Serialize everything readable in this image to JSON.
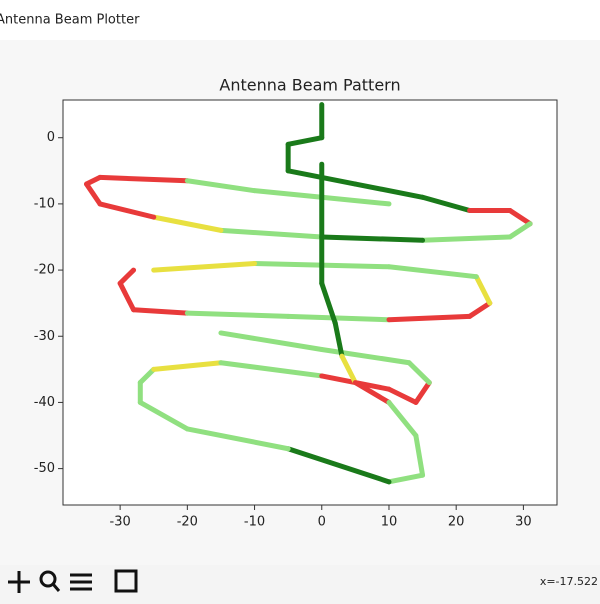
{
  "window_title": "Antenna Beam Plotter",
  "status": "x=-17.522",
  "chart_data": {
    "type": "line",
    "title": "Antenna Beam Pattern",
    "x": [
      0,
      0,
      -5,
      -5,
      5,
      15,
      22,
      28,
      31,
      28,
      15,
      0,
      -15,
      -25,
      -33,
      -35,
      -33,
      -20,
      -10,
      0,
      10,
      null,
      -28,
      -30,
      -28,
      -20,
      -5,
      10,
      22,
      25,
      23,
      10,
      -10,
      -25,
      null,
      -27,
      -25,
      -15,
      0,
      10,
      14,
      16,
      13,
      0,
      -15,
      null,
      0,
      0,
      0,
      2,
      3,
      5,
      10,
      14,
      15,
      10,
      -5,
      -20,
      -27,
      -27
    ],
    "series": [
      {
        "values": [
          5,
          0,
          -1,
          -5,
          -7,
          -9,
          -11,
          -11,
          -13,
          -15,
          -15.5,
          -15,
          -14,
          -12,
          -10,
          -7,
          -6,
          -6.5,
          -8,
          -9,
          -10,
          null,
          -20,
          -22,
          -26,
          -26.5,
          -27,
          -27.5,
          -27,
          -25,
          -21,
          -19.5,
          -19,
          -20,
          null,
          -37,
          -35,
          -34,
          -36,
          -38,
          -40,
          -37,
          -34,
          -32,
          -29.5,
          null,
          -4,
          -15,
          -22,
          -28,
          -33,
          -37,
          -40,
          -45,
          -51,
          -52,
          -47,
          -44,
          -40,
          -37
        ],
        "colors": [
          "#1a7a1a",
          "#1a7a1a",
          "#1a7a1a",
          "#1a7a1a",
          "#1a7a1a",
          "#1a7a1a",
          "#1a7a1a",
          "#e83a3a",
          "#e83a3a",
          "#90e080",
          "#90e080",
          "#1a7a1a",
          "#90e080",
          "#e8e040",
          "#e83a3a",
          "#e83a3a",
          "#e83a3a",
          "#e83a3a",
          "#90e080",
          "#90e080",
          "#90e080",
          null,
          "#e83a3a",
          "#e83a3a",
          "#e83a3a",
          "#e83a3a",
          "#90e080",
          "#90e080",
          "#e83a3a",
          "#e83a3a",
          "#e8e040",
          "#90e080",
          "#90e080",
          "#e8e040",
          null,
          "#e83a3a",
          "#90e080",
          "#e8e040",
          "#90e080",
          "#e83a3a",
          "#e83a3a",
          "#e83a3a",
          "#90e080",
          "#90e080",
          "#90e080",
          null,
          "#1a7a1a",
          "#1a7a1a",
          "#1a7a1a",
          "#1a7a1a",
          "#1a7a1a",
          "#e8e040",
          "#e83a3a",
          "#90e080",
          "#90e080",
          "#90e080",
          "#1a7a1a",
          "#90e080",
          "#90e080",
          "#90e080"
        ]
      }
    ],
    "xlim": [
      -38.5,
      35
    ],
    "ylim": [
      -55.5,
      5.7
    ],
    "xticks": [
      -30,
      -20,
      -10,
      0,
      10,
      20,
      30
    ],
    "yticks": [
      0,
      -10,
      -20,
      -30,
      -40,
      -50
    ]
  }
}
